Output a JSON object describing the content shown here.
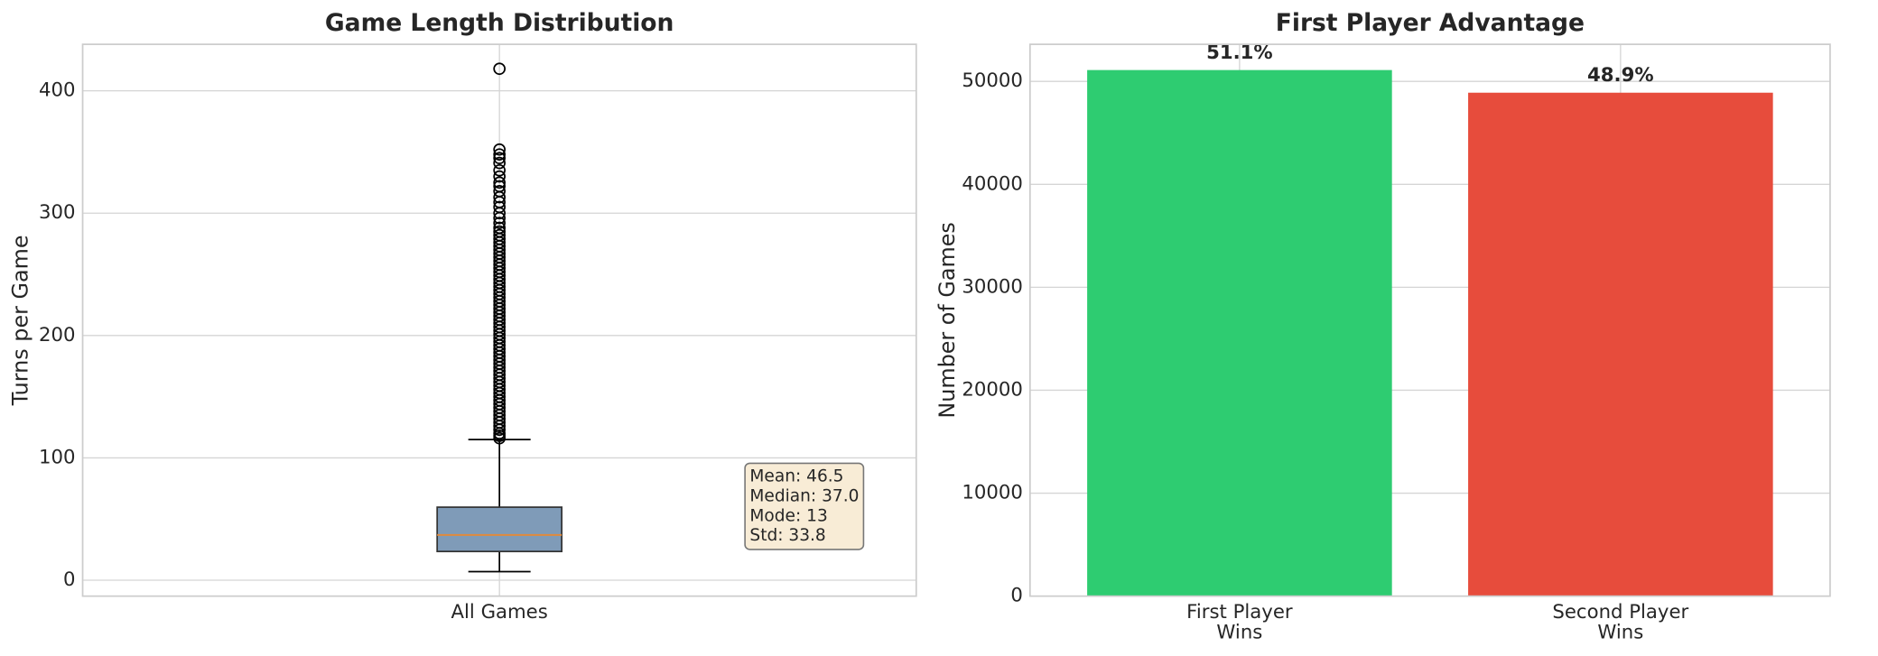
{
  "chart_data": [
    {
      "type": "box",
      "title": "Game Length Distribution",
      "ylabel": "Turns per Game",
      "categories": [
        "All Games"
      ],
      "boxes": [
        {
          "whislo": 7,
          "q1": 23.5,
          "med": 37,
          "q3": 59.7,
          "whishi": 115,
          "fliers": [
            116,
            118,
            120,
            123,
            126,
            129,
            132,
            135,
            138,
            141,
            144,
            147,
            150,
            153,
            156,
            159,
            162,
            165,
            168,
            171,
            174,
            177,
            180,
            183,
            186,
            189,
            192,
            195,
            198,
            201,
            204,
            207,
            210,
            213,
            216,
            219,
            222,
            225,
            228,
            231,
            234,
            237,
            240,
            243,
            246,
            249,
            252,
            255,
            258,
            261,
            264,
            267,
            270,
            273,
            276,
            279,
            282,
            285,
            288,
            292,
            296,
            300,
            305,
            309,
            313,
            318,
            322,
            325,
            330,
            335,
            341,
            345,
            348,
            352,
            418
          ]
        }
      ],
      "color": "#7f9bb8",
      "median_color": "#e08a3c",
      "annotation": [
        "Mean: 46.5",
        "Median: 37.0",
        "Mode: 13",
        "Std: 33.8"
      ],
      "ylim": [
        -13,
        438
      ],
      "yticks": [
        0,
        100,
        200,
        300,
        400
      ],
      "grid": true
    },
    {
      "type": "bar",
      "title": "First Player Advantage",
      "ylabel": "Number of Games",
      "categories": [
        "First Player\nWins",
        "Second Player\nWins"
      ],
      "values": [
        51100,
        48900
      ],
      "value_labels": [
        "51.1%",
        "48.9%"
      ],
      "colors": [
        "#2ecc71",
        "#e74c3c"
      ],
      "ylim": [
        0,
        53600
      ],
      "yticks": [
        0,
        10000,
        20000,
        30000,
        40000,
        50000
      ],
      "grid": true
    }
  ]
}
